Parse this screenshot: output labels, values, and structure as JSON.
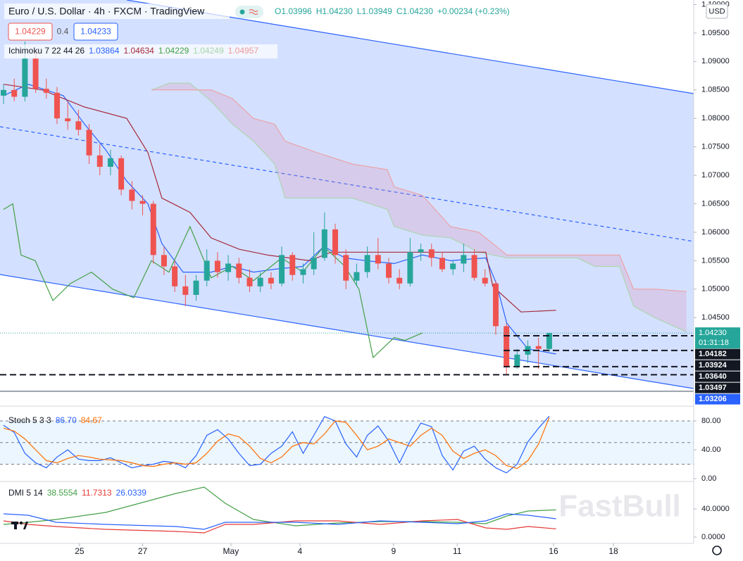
{
  "header": {
    "ohlc": [
      "O1.03996",
      "H1.04230",
      "L1.03949",
      "C1.04230"
    ],
    "change": "+0.00234 (+0.23%)",
    "sell": "1.04229",
    "spread": "0.4",
    "buy": "1.04233",
    "currency": "USD",
    "watermark": "FastBull"
  },
  "chart_data": [
    {
      "type": "candlestick",
      "title": "Euro / U.S. Dollar · 4h · FXCM · TradingView",
      "up_color": "#26a69a",
      "down_color": "#ef5350",
      "open": [
        1.084,
        1.085,
        1.0838,
        1.0905,
        1.0852,
        1.0845,
        1.08,
        1.0795,
        1.078,
        1.0735,
        1.0715,
        1.073,
        1.0675,
        1.0655,
        1.065,
        1.056,
        1.054,
        1.0505,
        1.049,
        1.0515,
        1.055,
        1.053,
        1.0545,
        1.052,
        1.0505,
        1.052,
        1.051,
        1.056,
        1.0525,
        1.0535,
        1.0555,
        1.0605,
        1.056,
        1.0515,
        1.053,
        1.056,
        1.0545,
        1.052,
        1.051,
        1.0565,
        1.057,
        1.0555,
        1.0535,
        1.0545,
        1.056,
        1.052,
        1.051,
        1.0435,
        1.0365,
        1.0385,
        1.04,
        1.0395
      ],
      "high": [
        1.086,
        1.087,
        1.0935,
        1.0915,
        1.087,
        1.0855,
        1.083,
        1.0815,
        1.079,
        1.0755,
        1.0745,
        1.0735,
        1.069,
        1.0665,
        1.0655,
        1.0575,
        1.055,
        1.0525,
        1.0525,
        1.057,
        1.0565,
        1.056,
        1.0555,
        1.0535,
        1.053,
        1.053,
        1.0575,
        1.0565,
        1.0545,
        1.06,
        1.0635,
        1.0615,
        1.057,
        1.0545,
        1.0575,
        1.059,
        1.0555,
        1.0535,
        1.059,
        1.058,
        1.058,
        1.0565,
        1.055,
        1.058,
        1.057,
        1.0535,
        1.0515,
        1.044,
        1.0395,
        1.041,
        1.0415,
        1.0423
      ],
      "low": [
        1.0825,
        1.083,
        1.083,
        1.0845,
        1.0835,
        1.079,
        1.078,
        1.077,
        1.072,
        1.07,
        1.07,
        1.0665,
        1.064,
        1.063,
        1.0545,
        1.0525,
        1.0495,
        1.047,
        1.048,
        1.0505,
        1.052,
        1.0515,
        1.051,
        1.0495,
        1.0495,
        1.05,
        1.0505,
        1.0515,
        1.051,
        1.0525,
        1.055,
        1.0545,
        1.05,
        1.0505,
        1.052,
        1.0535,
        1.051,
        1.05,
        1.0505,
        1.055,
        1.054,
        1.053,
        1.0525,
        1.053,
        1.0515,
        1.0505,
        1.042,
        1.035,
        1.036,
        1.037,
        1.036,
        1.039
      ],
      "close": [
        1.085,
        1.0838,
        1.0905,
        1.0852,
        1.0845,
        1.08,
        1.0795,
        1.078,
        1.0735,
        1.0715,
        1.073,
        1.0675,
        1.0655,
        1.065,
        1.056,
        1.054,
        1.0505,
        1.049,
        1.0515,
        1.055,
        1.053,
        1.0545,
        1.052,
        1.0505,
        1.052,
        1.051,
        1.056,
        1.0525,
        1.0535,
        1.0555,
        1.0605,
        1.056,
        1.0515,
        1.053,
        1.056,
        1.0545,
        1.052,
        1.051,
        1.0565,
        1.057,
        1.0555,
        1.0535,
        1.0545,
        1.056,
        1.052,
        1.051,
        1.0435,
        1.0365,
        1.0385,
        1.04,
        1.0395,
        1.0423
      ],
      "xlim": [
        -0.33,
        64.5
      ],
      "xticks": [
        {
          "value": 7.1,
          "label": "25"
        },
        {
          "value": 13,
          "label": "27"
        },
        {
          "value": 21.25,
          "label": "May"
        },
        {
          "value": 27.7,
          "label": "4"
        },
        {
          "value": 36.45,
          "label": "9"
        },
        {
          "value": 42.4,
          "label": "11"
        },
        {
          "value": 51.4,
          "label": "16"
        },
        {
          "value": 57,
          "label": "18"
        }
      ],
      "ylim": [
        1.0297,
        1.1008
      ],
      "yticks": [
        {
          "value": 1.1,
          "label": "1.10000"
        },
        {
          "value": 1.095,
          "label": "1.09500"
        },
        {
          "value": 1.09,
          "label": "1.09000"
        },
        {
          "value": 1.085,
          "label": "1.08500"
        },
        {
          "value": 1.08,
          "label": "1.08000"
        },
        {
          "value": 1.075,
          "label": "1.07500"
        },
        {
          "value": 1.07,
          "label": "1.07000"
        },
        {
          "value": 1.065,
          "label": "1.06500"
        },
        {
          "value": 1.06,
          "label": "1.06000"
        },
        {
          "value": 1.055,
          "label": "1.05500"
        },
        {
          "value": 1.05,
          "label": "1.05000"
        },
        {
          "value": 1.045,
          "label": "1.04500"
        }
      ],
      "last_price": {
        "value": 1.0423,
        "label": "1.04230"
      },
      "countdown": "01:31:18",
      "levels": [
        1.04182,
        1.03924,
        {
          "value": 1.0364,
          "label": "1.03640"
        },
        1.03497
      ],
      "support": 1.03206,
      "ichimoku": {
        "label": "Ichimoku 7 22 44 26",
        "legend_values": [
          1.03864,
          1.04634,
          1.04229,
          1.04249,
          1.04957
        ],
        "lines": [
          {
            "color": "#2962ff",
            "x": [
              0,
              2.3,
              5.59,
              7.57,
              9.54,
              11.51,
              13.49,
              14.8,
              16.78,
              19.41,
              21.38,
              23.36,
              25.33,
              27.96,
              29.93,
              31.91,
              33.88,
              36.51,
              39.14,
              41.78,
              45.07,
              46.05,
              47.04,
              49.01,
              51.64
            ],
            "values": [
              1.084,
              1.086,
              1.084,
              1.079,
              1.0745,
              1.069,
              1.065,
              1.058,
              1.053,
              1.053,
              1.054,
              1.053,
              1.0535,
              1.054,
              1.0575,
              1.0555,
              1.055,
              1.0545,
              1.056,
              1.055,
              1.0555,
              1.051,
              1.044,
              1.0395,
              1.0386
            ]
          },
          {
            "color": "#a52a3c",
            "x": [
              0,
              3.62,
              7.57,
              11.51,
              13.49,
              14.8,
              17.43,
              19.41,
              22.04,
              24.67,
              28.62,
              30.59,
              33.88,
              37.83,
              41.12,
              45.07,
              45.72,
              48.36,
              51.64
            ],
            "values": [
              1.086,
              1.085,
              1.082,
              1.08,
              1.074,
              1.066,
              1.0635,
              1.059,
              1.057,
              1.056,
              1.055,
              1.0565,
              1.0565,
              1.0565,
              1.0565,
              1.0565,
              1.0505,
              1.046,
              1.0463
            ]
          },
          {
            "color": "#43a047",
            "x": [
              0,
              0.86,
              1.64,
              2.96,
              4.61,
              6.25,
              8.22,
              10.2,
              12.17,
              13.82,
              15.46,
              17.43,
              19.41,
              21.38,
              23.36,
              25.99,
              27.96,
              29.93,
              31.91,
              33.22,
              34.54,
              36.51,
              37.5,
              39.14
            ],
            "values": [
              1.064,
              1.065,
              1.056,
              1.055,
              1.048,
              1.051,
              1.053,
              1.05,
              1.0485,
              1.055,
              1.053,
              1.061,
              1.052,
              1.054,
              1.0515,
              1.0555,
              1.053,
              1.0575,
              1.054,
              1.05,
              1.038,
              1.0415,
              1.041,
              1.0423
            ]
          }
        ],
        "cloud": {
          "color_a": "#a5d6a7",
          "color_b": "#ef9a9a",
          "fill": "rgba(220,140,170,0.25)",
          "x": [
            13.82,
            15.46,
            17.43,
            19.41,
            21.38,
            23.36,
            25.33,
            26.32,
            29.28,
            32.57,
            35.86,
            36.51,
            39.14,
            41.78,
            44.41,
            47.04,
            50.99,
            53.62,
            55.26,
            57.57,
            58.88,
            60.86,
            63.82
          ],
          "span_a": [
            1.085,
            1.0862,
            1.0862,
            1.083,
            1.079,
            1.076,
            1.072,
            1.066,
            1.066,
            1.066,
            1.064,
            1.061,
            1.0595,
            1.059,
            1.0565,
            1.0555,
            1.0555,
            1.0555,
            1.054,
            1.054,
            1.047,
            1.045,
            1.0425
          ],
          "span_b": [
            1.085,
            1.085,
            1.085,
            1.085,
            1.0835,
            1.08,
            1.079,
            1.076,
            1.074,
            1.072,
            1.071,
            1.068,
            1.0665,
            1.061,
            1.06,
            1.056,
            1.056,
            1.056,
            1.056,
            1.056,
            1.05,
            1.05,
            1.0496
          ]
        }
      }
    },
    {
      "type": "line",
      "label": "Stoch 5 3 3",
      "ylim": [
        0,
        100
      ],
      "yticks": [
        {
          "value": 80,
          "label": "80.00"
        },
        {
          "value": 40,
          "label": "40.00"
        },
        {
          "value": 0,
          "label": "0.00"
        }
      ],
      "band": [
        20,
        80
      ],
      "midline": 50,
      "legend_values": [
        {
          "value": 86.7,
          "label": "86.70"
        },
        84.67
      ],
      "series": [
        {
          "color": "#2962ff",
          "values": [
            74,
            64,
            35,
            22,
            15,
            30,
            40,
            27,
            25,
            25,
            29,
            22,
            15,
            18,
            20,
            24,
            22,
            15,
            32,
            60,
            68,
            55,
            35,
            18,
            20,
            35,
            45,
            65,
            35,
            60,
            86,
            80,
            48,
            30,
            60,
            73,
            52,
            22,
            52,
            77,
            72,
            32,
            12,
            38,
            45,
            27,
            15,
            8,
            20,
            51,
            70,
            86.7
          ]
        },
        {
          "color": "#ff6d00",
          "values": [
            70,
            66,
            55,
            40,
            25,
            22,
            28,
            32,
            30,
            27,
            26,
            25,
            22,
            18,
            17,
            20,
            22,
            20,
            22,
            35,
            52,
            62,
            58,
            45,
            28,
            22,
            30,
            45,
            50,
            48,
            62,
            80,
            78,
            60,
            40,
            45,
            55,
            50,
            45,
            60,
            70,
            60,
            38,
            28,
            35,
            40,
            32,
            18,
            14,
            25,
            48,
            84.67
          ]
        }
      ]
    },
    {
      "type": "line",
      "label": "DMI 5 14",
      "ylim": [
        -7,
        73
      ],
      "yticks": [
        {
          "value": 40,
          "label": "40.0000"
        },
        {
          "value": 0,
          "label": "0.0000"
        }
      ],
      "x": [
        0,
        2.3,
        4.93,
        9.54,
        16.12,
        18.75,
        20.72,
        23.36,
        27.3,
        31.25,
        35.2,
        39.14,
        42.43,
        45.07,
        47.04,
        49.01,
        51.64
      ],
      "series": [
        {
          "color": "#43a047",
          "values": [
            18,
            21,
            25,
            35,
            62,
            71,
            48,
            25,
            16,
            20,
            22,
            22,
            21,
            19,
            30,
            37,
            38.5554
          ]
        },
        {
          "color": "#e53935",
          "values": [
            23,
            18,
            15,
            11,
            8,
            6,
            18,
            18,
            23,
            23,
            18,
            23,
            25,
            13,
            11,
            15,
            11.7313
          ]
        },
        {
          "color": "#2962ff",
          "values": [
            33,
            31,
            21,
            18,
            15,
            11,
            21,
            21,
            21,
            18,
            23,
            21,
            19,
            23,
            33,
            31,
            26.0339
          ]
        }
      ]
    }
  ]
}
